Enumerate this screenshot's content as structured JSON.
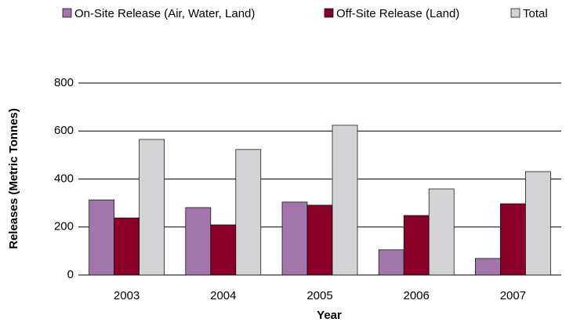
{
  "chart_data": {
    "type": "bar",
    "categories": [
      "2003",
      "2004",
      "2005",
      "2006",
      "2007"
    ],
    "series": [
      {
        "name": "On-Site Release (Air, Water, Land)",
        "color": "#a376ab",
        "values": [
          313,
          281,
          304,
          105,
          69
        ]
      },
      {
        "name": "Off-Site Release (Land)",
        "color": "#8b0029",
        "values": [
          238,
          209,
          291,
          248,
          297
        ]
      },
      {
        "name": "Total",
        "color": "#d3d3d5",
        "values": [
          565,
          523,
          624,
          359,
          431
        ]
      }
    ],
    "xlabel": "Year",
    "ylabel": "Releases (Metric Tonnes)",
    "ylim": [
      0,
      800
    ],
    "yticks": [
      0,
      200,
      400,
      600,
      800
    ],
    "grid": true,
    "legend": "top"
  }
}
